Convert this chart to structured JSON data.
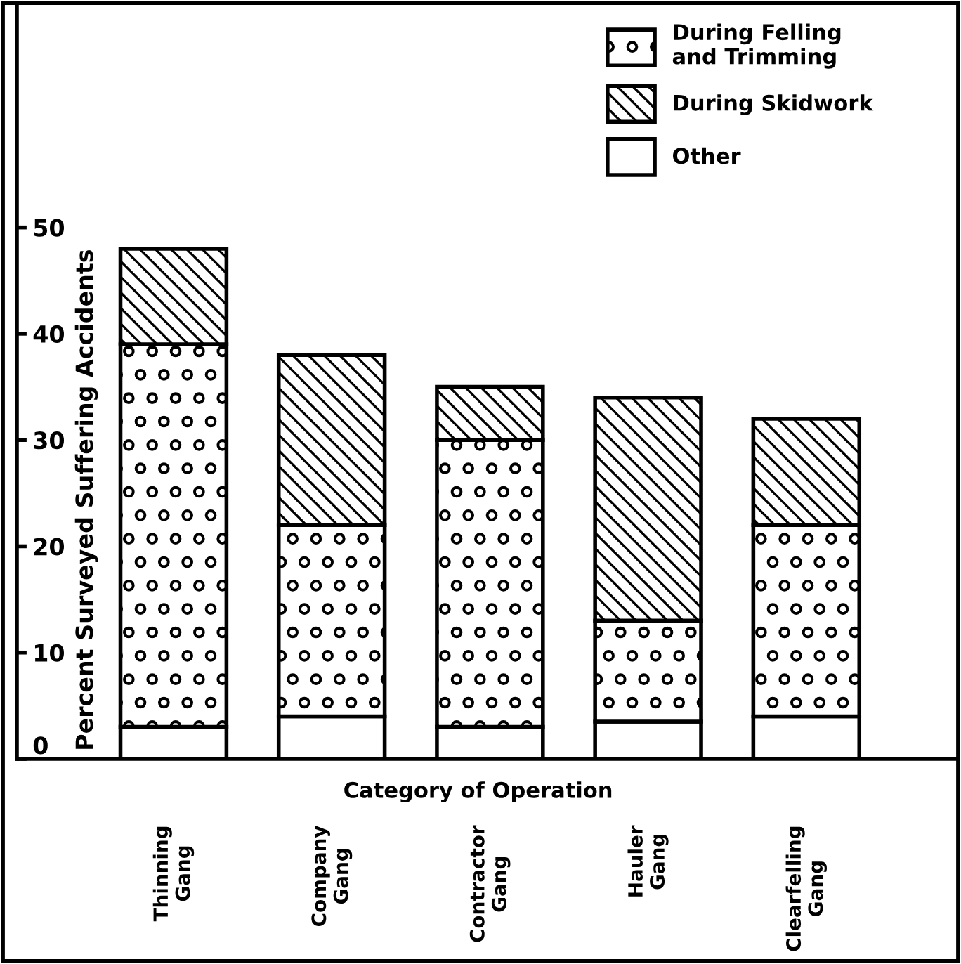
{
  "chart_data": {
    "type": "bar",
    "stacked": true,
    "xlabel": "Category of Operation",
    "ylabel": "Percent Surveyed Suffering Accidents",
    "categories": [
      "Thinning\nGang",
      "Company\nGang",
      "Contractor\nGang",
      "Hauler\nGang",
      "Clearfelling\nGang"
    ],
    "series": [
      {
        "name": "Other",
        "color": "#ffffff",
        "values": [
          3,
          4,
          3,
          3.5,
          4
        ]
      },
      {
        "name": "During Felling\nand Trimming",
        "color": "#000000",
        "values": [
          36,
          18,
          27,
          9.5,
          18
        ]
      },
      {
        "name": "During Skidwork",
        "color": "#000000",
        "values": [
          9,
          16,
          5,
          21,
          10
        ]
      }
    ],
    "ylim": [
      0,
      71
    ],
    "yticks": [
      0,
      10,
      20,
      30,
      40,
      50
    ],
    "grid": false,
    "legend": "top right"
  }
}
